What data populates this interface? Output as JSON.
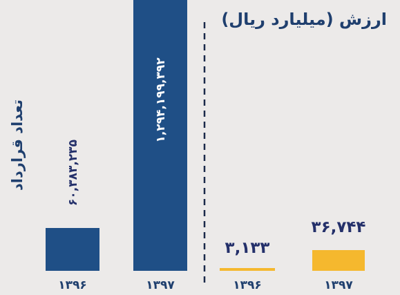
{
  "colors": {
    "background": "#eceae9",
    "count_bar": "#1f4f86",
    "value_bar": "#f5b82e",
    "text_dark": "#1f3f6e",
    "value_label": "#24306a",
    "divider": "#1b2a4a"
  },
  "chart_data": [
    {
      "type": "bar",
      "title": "تعداد قرارداد",
      "categories": [
        "۱۳۹۶",
        "۱۳۹۷"
      ],
      "values": [
        60383235,
        1294199392
      ],
      "value_labels": [
        "۶۰,۳۸۳,۲۳۵",
        "۱,۲۹۴,۱۹۹,۳۹۲"
      ],
      "bar_color": "#1f4f86"
    },
    {
      "type": "bar",
      "title": "ارزش (میلیارد ریال)",
      "categories": [
        "۱۳۹۶",
        "۱۳۹۷"
      ],
      "values": [
        3133,
        36744
      ],
      "value_labels": [
        "۳,۱۳۳",
        "۳۶,۷۴۴"
      ],
      "bar_color": "#f5b82e"
    }
  ]
}
